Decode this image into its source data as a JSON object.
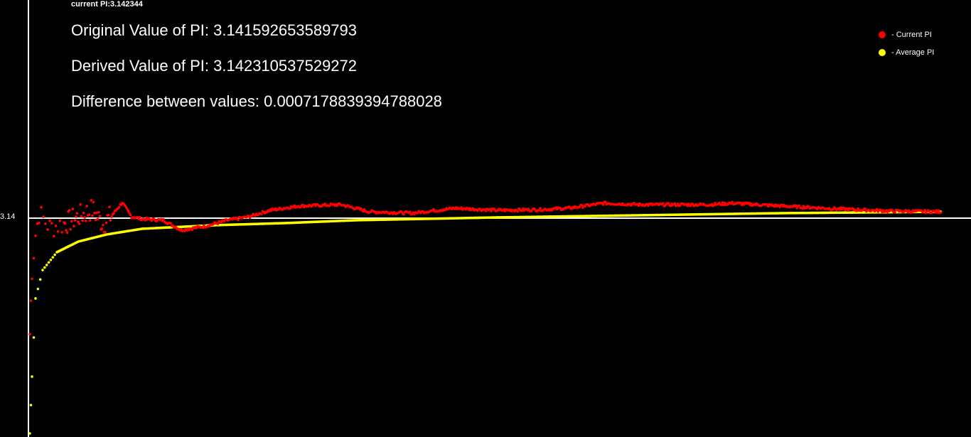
{
  "header": {
    "current_pi": "current PI:3.142344",
    "original": "Original Value of PI: 3.141592653589793",
    "derived": "Derived Value of PI: 3.142310537529272",
    "difference": "Difference between values: 0.0007178839394788028"
  },
  "chart_data": {
    "type": "scatter",
    "title": "",
    "xlabel": "",
    "ylabel": "",
    "ylim": [
      3.1179,
      3.1652
    ],
    "y_ticks": [
      {
        "value": 3.14159,
        "label": "3.14"
      }
    ],
    "reference_line": 3.14159,
    "grid": false,
    "legend_position": "top-right",
    "series": [
      {
        "name": "- Current PI",
        "color": "#ff0000",
        "x": [
          2,
          5,
          10,
          15,
          30,
          50,
          70,
          90,
          105,
          120,
          132,
          145,
          160,
          190,
          215,
          250,
          280,
          310,
          340,
          380,
          440,
          480,
          540,
          600,
          660,
          720,
          760,
          810,
          860,
          960,
          990,
          1060,
          1140,
          1210,
          1285
        ],
        "values": [
          3.12905,
          3.13597,
          3.13982,
          3.14213,
          3.14059,
          3.14097,
          3.14174,
          3.14251,
          3.14097,
          3.14213,
          3.14328,
          3.14174,
          3.14151,
          3.14136,
          3.14028,
          3.14074,
          3.14136,
          3.14174,
          3.14244,
          3.1429,
          3.14305,
          3.14228,
          3.14213,
          3.14267,
          3.14244,
          3.14251,
          3.14267,
          3.14321,
          3.14305,
          3.14305,
          3.14321,
          3.1429,
          3.14259,
          3.14236,
          3.14228
        ]
      },
      {
        "name": "- Average PI",
        "color": "#ffff00",
        "x": [
          2,
          5,
          10,
          20,
          40,
          70,
          110,
          160,
          260,
          360,
          460,
          660,
          860,
          1060,
          1285
        ],
        "values": [
          3.11828,
          3.12444,
          3.1329,
          3.13597,
          3.1379,
          3.13905,
          3.13982,
          3.14044,
          3.14082,
          3.14105,
          3.14136,
          3.14167,
          3.1419,
          3.14213,
          3.14228
        ]
      }
    ]
  }
}
